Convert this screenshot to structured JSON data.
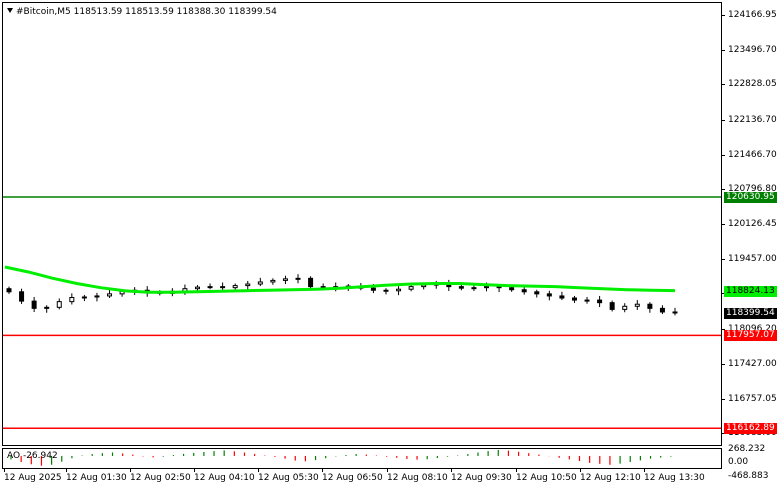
{
  "window": {
    "symbol_line": "#Bitcoin,M5  118513.59 118513.59 118388.30 118399.54"
  },
  "levels": {
    "resistance_label": "120630.95",
    "ma_label": "118824.13",
    "current_label": "118399.54",
    "support_label": "117957.07",
    "lower_label": "116162.89"
  },
  "price_axis": {
    "ticks": [
      "124166.95",
      "123496.70",
      "122828.05",
      "122136.70",
      "121466.70",
      "120796.80",
      "120126.45",
      "119457.00",
      "118786.60",
      "118096.20",
      "117427.00",
      "116757.05",
      "116083.00"
    ]
  },
  "indicator": {
    "name": "AO -26.942",
    "ticks": [
      "268.232",
      "0.00",
      "-468.883"
    ]
  },
  "time_axis": {
    "labels": [
      "12 Aug 2025",
      "12 Aug 01:30",
      "12 Aug 02:50",
      "12 Aug 04:10",
      "12 Aug 05:30",
      "12 Aug 06:50",
      "12 Aug 08:10",
      "12 Aug 09:30",
      "12 Aug 10:50",
      "12 Aug 12:10",
      "12 Aug 13:30"
    ]
  },
  "colors": {
    "resistance": "#008000",
    "support": "#ff0000",
    "ma": "#00ee00",
    "ao_up": "#008000",
    "ao_down": "#ff0000"
  },
  "chart_data": {
    "type": "candlestick",
    "symbol": "#Bitcoin",
    "timeframe": "M5",
    "ohlc_last": {
      "open": 118513.59,
      "high": 118513.59,
      "low": 118388.3,
      "close": 118399.54
    },
    "ylim": [
      115840,
      124380
    ],
    "horizontal_levels": [
      {
        "value": 120630.95,
        "color": "green"
      },
      {
        "value": 117957.07,
        "color": "red"
      },
      {
        "value": 116162.89,
        "color": "red"
      }
    ],
    "closes": [
      118800,
      118620,
      118480,
      118500,
      118610,
      118690,
      118700,
      118720,
      118760,
      118810,
      118830,
      118790,
      118770,
      118810,
      118860,
      118890,
      118900,
      118880,
      118920,
      118950,
      118990,
      119020,
      119050,
      119060,
      118900,
      118880,
      118900,
      118910,
      118870,
      118830,
      118820,
      118850,
      118900,
      118930,
      118950,
      118900,
      118870,
      118880,
      118900,
      118880,
      118840,
      118800,
      118760,
      118720,
      118680,
      118640,
      118640,
      118590,
      118460,
      118520,
      118560,
      118480,
      118410,
      118400
    ],
    "ma": [
      119280,
      119180,
      119060,
      118960,
      118880,
      118820,
      118790,
      118790,
      118800,
      118810,
      118820,
      118830,
      118840,
      118850,
      118870,
      118900,
      118930,
      118950,
      118960,
      118960,
      118940,
      118920,
      118910,
      118900,
      118880,
      118860,
      118840,
      118830,
      118824
    ],
    "ao": {
      "ticks": [
        268.232,
        0.0,
        -468.883
      ],
      "ylim": [
        -520,
        300
      ],
      "values": [
        -150,
        -260,
        -360,
        -420,
        -380,
        -250,
        -100,
        20,
        80,
        120,
        150,
        110,
        60,
        -20,
        -60,
        -30,
        40,
        90,
        130,
        170,
        210,
        240,
        200,
        150,
        90,
        20,
        -40,
        -120,
        -200,
        -230,
        -180,
        -100,
        -20,
        40,
        80,
        60,
        20,
        -30,
        -80,
        -130,
        -160,
        -140,
        -90,
        -30,
        20,
        80,
        150,
        210,
        260,
        230,
        180,
        120,
        60,
        -10,
        -80,
        -150,
        -220,
        -300,
        -340,
        -380,
        -330,
        -260,
        -190,
        -120,
        -70,
        -27
      ]
    }
  }
}
